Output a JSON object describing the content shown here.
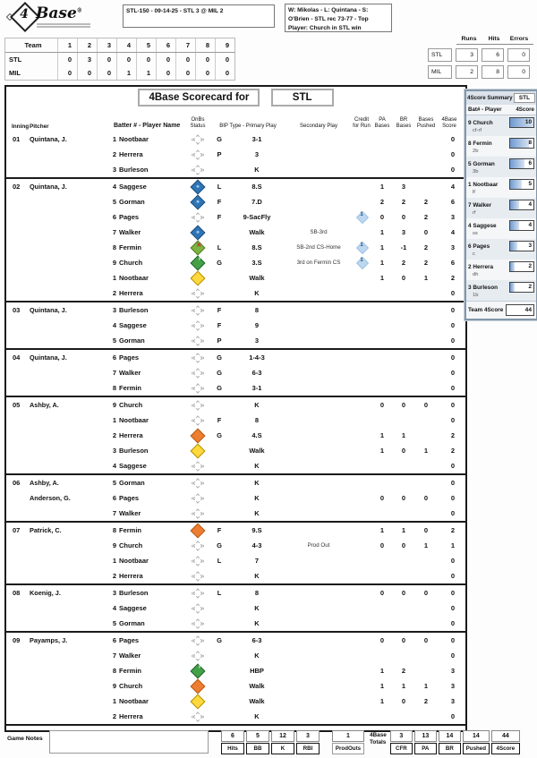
{
  "logo": {
    "glyph": "4",
    "name": "Base",
    "reg": "®"
  },
  "header": {
    "game_info": "STL-150 - 09-14-25 - STL 3 @ MIL 2",
    "game_summary": "W: Mikolas - L: Quintana - S: O'Brien - STL rec 73-77 - Top Player: Church in STL win"
  },
  "linescore": {
    "team_header": "Team",
    "innings": [
      "1",
      "2",
      "3",
      "4",
      "5",
      "6",
      "7",
      "8",
      "9"
    ],
    "rows": [
      {
        "team": "STL",
        "scores": [
          "0",
          "3",
          "0",
          "0",
          "0",
          "0",
          "0",
          "0",
          "0"
        ]
      },
      {
        "team": "MIL",
        "scores": [
          "0",
          "0",
          "0",
          "1",
          "1",
          "0",
          "0",
          "0",
          "0"
        ]
      }
    ]
  },
  "rhe": {
    "headers": [
      "Runs",
      "Hits",
      "Errors"
    ],
    "rows": [
      {
        "team": "STL",
        "values": [
          "3",
          "6",
          "0"
        ]
      },
      {
        "team": "MIL",
        "values": [
          "2",
          "8",
          "0"
        ]
      }
    ]
  },
  "scorecard": {
    "title": "4Base Scorecard for",
    "team": "STL",
    "columns": {
      "inning": "Inning",
      "pitcher": "Pitcher",
      "batter": "Batter # - Player Name",
      "onbs": "OnBs Status",
      "bip": "BIP Type - Primary Play",
      "secondary": "Secondary Play",
      "cfr": "Credit for Run",
      "pa": "PA Bases",
      "br": "BR Bases",
      "pushed": "Bases Pushed",
      "score": "4Base Score"
    },
    "innings": [
      {
        "inning": "01",
        "pitchers": [
          "Quintana, J."
        ],
        "rows": [
          {
            "bat": "1",
            "name": "Nootbaar",
            "onbs": "none",
            "bip": "G",
            "primary": "3-1",
            "secondary": "",
            "cfr": false,
            "pa": "",
            "br": "",
            "pushed": "",
            "score": "0"
          },
          {
            "bat": "2",
            "name": "Herrera",
            "onbs": "none",
            "bip": "P",
            "primary": "3",
            "secondary": "",
            "cfr": false,
            "pa": "",
            "br": "",
            "pushed": "",
            "score": "0"
          },
          {
            "bat": "3",
            "name": "Burleson",
            "onbs": "none",
            "bip": "",
            "primary": "K",
            "secondary": "",
            "cfr": false,
            "pa": "",
            "br": "",
            "pushed": "",
            "score": "0"
          }
        ]
      },
      {
        "inning": "02",
        "pitchers": [
          "Quintana, J."
        ],
        "rows": [
          {
            "bat": "4",
            "name": "Saggese",
            "onbs": "scored",
            "bip": "L",
            "primary": "8.S",
            "secondary": "",
            "cfr": false,
            "pa": "1",
            "br": "3",
            "pushed": "",
            "score": "4"
          },
          {
            "bat": "5",
            "name": "Gorman",
            "onbs": "scored",
            "bip": "F",
            "primary": "7.D",
            "secondary": "",
            "cfr": false,
            "pa": "2",
            "br": "2",
            "pushed": "2",
            "score": "6"
          },
          {
            "bat": "6",
            "name": "Pages",
            "onbs": "none",
            "bip": "F",
            "primary": "9-SacFly",
            "secondary": "",
            "cfr": true,
            "pa": "0",
            "br": "0",
            "pushed": "2",
            "score": "3"
          },
          {
            "bat": "7",
            "name": "Walker",
            "onbs": "scored",
            "bip": "",
            "primary": "Walk",
            "secondary": "SB-3rd",
            "cfr": false,
            "pa": "1",
            "br": "3",
            "pushed": "0",
            "score": "4"
          },
          {
            "bat": "8",
            "name": "Fermin",
            "onbs": "cs",
            "bip": "L",
            "primary": "8.S",
            "secondary": "SB-2nd CS-Home",
            "cfr": true,
            "pa": "1",
            "br": "-1",
            "pushed": "2",
            "score": "3"
          },
          {
            "bat": "9",
            "name": "Church",
            "onbs": "third",
            "bip": "G",
            "primary": "3.S",
            "secondary": "3rd on Fermin CS",
            "cfr": true,
            "pa": "1",
            "br": "2",
            "pushed": "2",
            "score": "6"
          },
          {
            "bat": "1",
            "name": "Nootbaar",
            "onbs": "first",
            "bip": "",
            "primary": "Walk",
            "secondary": "",
            "cfr": false,
            "pa": "1",
            "br": "0",
            "pushed": "1",
            "score": "2"
          },
          {
            "bat": "2",
            "name": "Herrera",
            "onbs": "none",
            "bip": "",
            "primary": "K",
            "secondary": "",
            "cfr": false,
            "pa": "",
            "br": "",
            "pushed": "",
            "score": "0"
          }
        ]
      },
      {
        "inning": "03",
        "pitchers": [
          "Quintana, J."
        ],
        "rows": [
          {
            "bat": "3",
            "name": "Burleson",
            "onbs": "none",
            "bip": "F",
            "primary": "8",
            "secondary": "",
            "cfr": false,
            "pa": "",
            "br": "",
            "pushed": "",
            "score": "0"
          },
          {
            "bat": "4",
            "name": "Saggese",
            "onbs": "none",
            "bip": "F",
            "primary": "9",
            "secondary": "",
            "cfr": false,
            "pa": "",
            "br": "",
            "pushed": "",
            "score": "0"
          },
          {
            "bat": "5",
            "name": "Gorman",
            "onbs": "none",
            "bip": "P",
            "primary": "3",
            "secondary": "",
            "cfr": false,
            "pa": "",
            "br": "",
            "pushed": "",
            "score": "0"
          }
        ]
      },
      {
        "inning": "04",
        "pitchers": [
          "Quintana, J."
        ],
        "rows": [
          {
            "bat": "6",
            "name": "Pages",
            "onbs": "none",
            "bip": "G",
            "primary": "1-4-3",
            "secondary": "",
            "cfr": false,
            "pa": "",
            "br": "",
            "pushed": "",
            "score": "0"
          },
          {
            "bat": "7",
            "name": "Walker",
            "onbs": "none",
            "bip": "G",
            "primary": "6-3",
            "secondary": "",
            "cfr": false,
            "pa": "",
            "br": "",
            "pushed": "",
            "score": "0"
          },
          {
            "bat": "8",
            "name": "Fermin",
            "onbs": "none",
            "bip": "G",
            "primary": "3-1",
            "secondary": "",
            "cfr": false,
            "pa": "",
            "br": "",
            "pushed": "",
            "score": "0"
          }
        ]
      },
      {
        "inning": "05",
        "pitchers": [
          "Ashby, A."
        ],
        "rows": [
          {
            "bat": "9",
            "name": "Church",
            "onbs": "none",
            "bip": "",
            "primary": "K",
            "secondary": "",
            "cfr": false,
            "pa": "0",
            "br": "0",
            "pushed": "0",
            "score": "0"
          },
          {
            "bat": "1",
            "name": "Nootbaar",
            "onbs": "none",
            "bip": "F",
            "primary": "8",
            "secondary": "",
            "cfr": false,
            "pa": "",
            "br": "",
            "pushed": "",
            "score": "0"
          },
          {
            "bat": "2",
            "name": "Herrera",
            "onbs": "second",
            "bip": "G",
            "primary": "4.S",
            "secondary": "",
            "cfr": false,
            "pa": "1",
            "br": "1",
            "pushed": "",
            "score": "2"
          },
          {
            "bat": "3",
            "name": "Burleson",
            "onbs": "first",
            "bip": "",
            "primary": "Walk",
            "secondary": "",
            "cfr": false,
            "pa": "1",
            "br": "0",
            "pushed": "1",
            "score": "2"
          },
          {
            "bat": "4",
            "name": "Saggese",
            "onbs": "none",
            "bip": "",
            "primary": "K",
            "secondary": "",
            "cfr": false,
            "pa": "",
            "br": "",
            "pushed": "",
            "score": "0"
          }
        ]
      },
      {
        "inning": "06",
        "pitchers": [
          "Ashby, A.",
          "Anderson, G."
        ],
        "rows": [
          {
            "bat": "5",
            "name": "Gorman",
            "onbs": "none",
            "bip": "",
            "primary": "K",
            "secondary": "",
            "cfr": false,
            "pa": "",
            "br": "",
            "pushed": "",
            "score": "0"
          },
          {
            "bat": "6",
            "name": "Pages",
            "onbs": "none",
            "bip": "",
            "primary": "K",
            "secondary": "",
            "cfr": false,
            "pa": "0",
            "br": "0",
            "pushed": "0",
            "score": "0"
          },
          {
            "bat": "7",
            "name": "Walker",
            "onbs": "none",
            "bip": "",
            "primary": "K",
            "secondary": "",
            "cfr": false,
            "pa": "",
            "br": "",
            "pushed": "",
            "score": "0"
          }
        ]
      },
      {
        "inning": "07",
        "pitchers": [
          "Patrick, C."
        ],
        "rows": [
          {
            "bat": "8",
            "name": "Fermin",
            "onbs": "second",
            "bip": "F",
            "primary": "9.S",
            "secondary": "",
            "cfr": false,
            "pa": "1",
            "br": "1",
            "pushed": "0",
            "score": "2"
          },
          {
            "bat": "9",
            "name": "Church",
            "onbs": "none",
            "bip": "G",
            "primary": "4-3",
            "secondary": "Prod Out",
            "cfr": false,
            "pa": "0",
            "br": "0",
            "pushed": "1",
            "score": "1"
          },
          {
            "bat": "1",
            "name": "Nootbaar",
            "onbs": "none",
            "bip": "L",
            "primary": "7",
            "secondary": "",
            "cfr": false,
            "pa": "",
            "br": "",
            "pushed": "",
            "score": "0"
          },
          {
            "bat": "2",
            "name": "Herrera",
            "onbs": "none",
            "bip": "",
            "primary": "K",
            "secondary": "",
            "cfr": false,
            "pa": "",
            "br": "",
            "pushed": "",
            "score": "0"
          }
        ]
      },
      {
        "inning": "08",
        "pitchers": [
          "Koenig, J."
        ],
        "rows": [
          {
            "bat": "3",
            "name": "Burleson",
            "onbs": "none",
            "bip": "L",
            "primary": "8",
            "secondary": "",
            "cfr": false,
            "pa": "0",
            "br": "0",
            "pushed": "0",
            "score": "0"
          },
          {
            "bat": "4",
            "name": "Saggese",
            "onbs": "none",
            "bip": "",
            "primary": "K",
            "secondary": "",
            "cfr": false,
            "pa": "",
            "br": "",
            "pushed": "",
            "score": "0"
          },
          {
            "bat": "5",
            "name": "Gorman",
            "onbs": "none",
            "bip": "",
            "primary": "K",
            "secondary": "",
            "cfr": false,
            "pa": "",
            "br": "",
            "pushed": "",
            "score": "0"
          }
        ]
      },
      {
        "inning": "09",
        "pitchers": [
          "Payamps, J."
        ],
        "rows": [
          {
            "bat": "6",
            "name": "Pages",
            "onbs": "none",
            "bip": "G",
            "primary": "6-3",
            "secondary": "",
            "cfr": false,
            "pa": "0",
            "br": "0",
            "pushed": "0",
            "score": "0"
          },
          {
            "bat": "7",
            "name": "Walker",
            "onbs": "none",
            "bip": "",
            "primary": "K",
            "secondary": "",
            "cfr": false,
            "pa": "",
            "br": "",
            "pushed": "",
            "score": "0"
          },
          {
            "bat": "8",
            "name": "Fermin",
            "onbs": "third",
            "bip": "",
            "primary": "HBP",
            "secondary": "",
            "cfr": false,
            "pa": "1",
            "br": "2",
            "pushed": "",
            "score": "3"
          },
          {
            "bat": "9",
            "name": "Church",
            "onbs": "second",
            "bip": "",
            "primary": "Walk",
            "secondary": "",
            "cfr": false,
            "pa": "1",
            "br": "1",
            "pushed": "1",
            "score": "3"
          },
          {
            "bat": "1",
            "name": "Nootbaar",
            "onbs": "first",
            "bip": "",
            "primary": "Walk",
            "secondary": "",
            "cfr": false,
            "pa": "1",
            "br": "0",
            "pushed": "2",
            "score": "3"
          },
          {
            "bat": "2",
            "name": "Herrera",
            "onbs": "none",
            "bip": "",
            "primary": "K",
            "secondary": "",
            "cfr": false,
            "pa": "",
            "br": "",
            "pushed": "",
            "score": "0"
          }
        ]
      }
    ]
  },
  "summary": {
    "title": "4Score Summary",
    "team": "STL",
    "col_player": "Bat# - Player",
    "col_score": "4Score",
    "players": [
      {
        "bat": "9",
        "name": "Church",
        "pos": "cf-rf",
        "score": 10
      },
      {
        "bat": "8",
        "name": "Fermin",
        "pos": "2b",
        "score": 8
      },
      {
        "bat": "5",
        "name": "Gorman",
        "pos": "3b",
        "score": 6
      },
      {
        "bat": "1",
        "name": "Nootbaar",
        "pos": "lf",
        "score": 5
      },
      {
        "bat": "7",
        "name": "Walker",
        "pos": "rf",
        "score": 4
      },
      {
        "bat": "4",
        "name": "Saggese",
        "pos": "ss",
        "score": 4
      },
      {
        "bat": "6",
        "name": "Pages",
        "pos": "c",
        "score": 3
      },
      {
        "bat": "2",
        "name": "Herrera",
        "pos": "dh",
        "score": 2
      },
      {
        "bat": "3",
        "name": "Burleson",
        "pos": "1b",
        "score": 2
      }
    ],
    "team_total_label": "Team 4Score",
    "team_total": "44"
  },
  "footer": {
    "notes_label": "Game Notes",
    "notes_value": "",
    "batting_stats": [
      {
        "label": "Hits",
        "value": "6"
      },
      {
        "label": "BB",
        "value": "5"
      },
      {
        "label": "K",
        "value": "12"
      },
      {
        "label": "RBI",
        "value": "3"
      }
    ],
    "prodouts": {
      "label": "ProdOuts",
      "value": "1"
    },
    "totals_label_line1": "4Base",
    "totals_label_line2": "Totals",
    "totals": [
      {
        "label": "CFR",
        "value": "3"
      },
      {
        "label": "PA",
        "value": "13"
      },
      {
        "label": "BR",
        "value": "14"
      },
      {
        "label": "Pushed",
        "value": "14"
      },
      {
        "label": "4Score",
        "value": "44"
      }
    ]
  },
  "colors": {
    "accent_blue": "#2E75B6",
    "credit_diamond": "#BDD7EE",
    "bar_fill": "#6F9BD1"
  }
}
